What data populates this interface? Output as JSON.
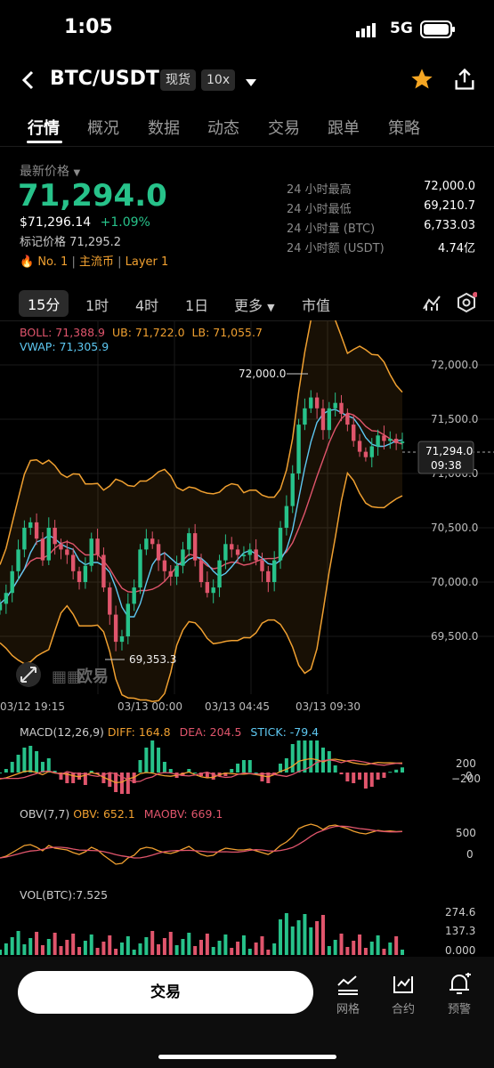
{
  "status": {
    "time": "1:05",
    "network": "5G"
  },
  "header": {
    "pair": "BTC/USDT",
    "market_tag": "现货",
    "leverage_tag": "10x"
  },
  "tabs": [
    "行情",
    "概况",
    "数据",
    "动态",
    "交易",
    "跟单",
    "策略"
  ],
  "price": {
    "label": "最新价格",
    "last": "71,294.0",
    "usd": "$71,296.14",
    "change": "+1.09%",
    "mark_label": "标记价格",
    "mark": "71,295.2",
    "rank": "No. 1",
    "category": "主流币",
    "layer": "Layer 1"
  },
  "stats": [
    {
      "label": "24 小时最高",
      "value": "72,000.0"
    },
    {
      "label": "24 小时最低",
      "value": "69,210.7"
    },
    {
      "label": "24 小时量 (BTC)",
      "value": "6,733.03"
    },
    {
      "label": "24 小时额 (USDT)",
      "value": "4.74亿"
    }
  ],
  "periods": [
    "15分",
    "1时",
    "4时",
    "1日",
    "更多",
    "市值"
  ],
  "indicators": {
    "boll_label": "BOLL: 71,388.9",
    "ub_label": "UB: 71,722.0",
    "lb_label": "LB: 71,055.7",
    "vwap_label": "VWAP: 71,305.9",
    "macd_title": "MACD(12,26,9)",
    "diff": "DIFF: 164.8",
    "dea": "DEA: 204.5",
    "stick": "STICK: -79.4",
    "obv_title": "OBV(7,7)",
    "obv": "OBV: 652.1",
    "maobv": "MAOBV: 669.1",
    "vol_title": "VOL(BTC):7.525"
  },
  "chart_data": {
    "type": "line",
    "title": "",
    "y_ticks": [
      "72,000.0",
      "71,500.0",
      "71,000.0",
      "70,500.0",
      "70,000.0",
      "69,500.0"
    ],
    "x_labels": [
      "03/12 19:15",
      "03/13 00:00",
      "03/13 04:45",
      "03/13 09:30"
    ],
    "high_label": "72,000.0",
    "low_label": "69,353.3",
    "current_price": "71,294.0",
    "countdown": "09:38",
    "macd_ticks": [
      "200",
      "0",
      "−200"
    ],
    "obv_ticks": [
      "500",
      "0"
    ],
    "vol_ticks": [
      "274.6",
      "137.3",
      "0.000"
    ],
    "watermark": "欧易",
    "close_series": [
      69800,
      69900,
      70100,
      70300,
      70500,
      70550,
      70400,
      70200,
      70500,
      70350,
      70300,
      70250,
      70100,
      70000,
      70150,
      70400,
      70250,
      69950,
      69700,
      69450,
      69500,
      69800,
      69950,
      70300,
      70400,
      70350,
      70200,
      70100,
      70050,
      70150,
      70300,
      70450,
      70200,
      70000,
      69900,
      69950,
      70200,
      70350,
      70300,
      70250,
      70250,
      70300,
      70200,
      70100,
      70000,
      70200,
      70500,
      70700,
      71000,
      71450,
      71600,
      71700,
      71600,
      71400,
      71600,
      71650,
      71550,
      71450,
      71300,
      71200,
      71150,
      71250,
      71350,
      71300,
      71320,
      71280,
      71294
    ]
  },
  "bottom": {
    "trade": "交易",
    "grid": "网格",
    "contract": "合约",
    "alert": "预警"
  }
}
